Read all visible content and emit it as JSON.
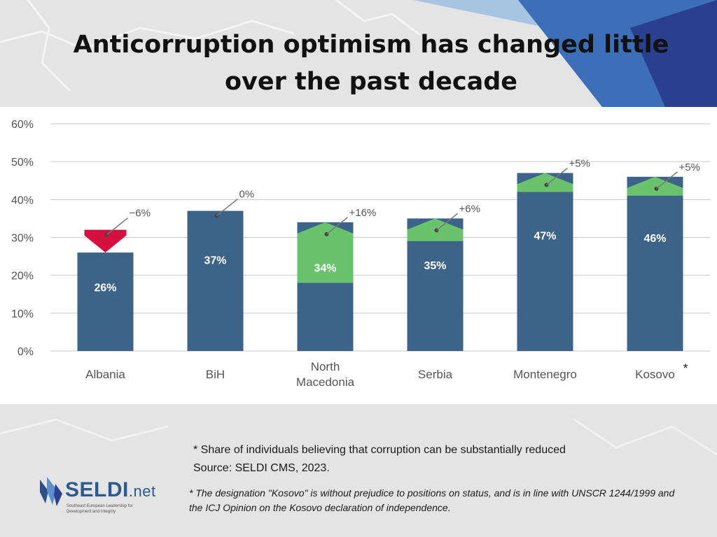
{
  "title_lines": [
    "Anticorruption optimism has changed little",
    "over the past decade"
  ],
  "chart_data": {
    "type": "bar",
    "categories": [
      "Albania",
      "BiH",
      "North Macedonia",
      "Serbia",
      "Montenegro",
      "Kosovo"
    ],
    "category_labels": [
      [
        "Albania"
      ],
      [
        "BiH"
      ],
      [
        "North",
        "Macedonia"
      ],
      [
        "Serbia"
      ],
      [
        "Montenegro"
      ],
      [
        "Kosovo"
      ]
    ],
    "category_markers": [
      "",
      "",
      "",
      "",
      "",
      "*"
    ],
    "values": [
      26,
      37,
      34,
      35,
      47,
      46
    ],
    "value_labels": [
      "26%",
      "37%",
      "34%",
      "35%",
      "47%",
      "46%"
    ],
    "changes": [
      -6,
      0,
      16,
      6,
      5,
      5
    ],
    "change_labels": [
      "−6%",
      "0%",
      "+16%",
      "+6%",
      "+5%",
      "+5%"
    ],
    "ylim": [
      0,
      60
    ],
    "yticks": [
      0,
      10,
      20,
      30,
      40,
      50,
      60
    ],
    "ytick_labels": [
      "0%",
      "10%",
      "20%",
      "30%",
      "40%",
      "50%",
      "60%"
    ],
    "grid": true,
    "colors": {
      "bar": "#3d6488",
      "increase": "#6ac36c",
      "decrease": "#d4103f",
      "grid": "#c8c8c8",
      "text": "#555555"
    }
  },
  "notes": {
    "definition": "* Share of individuals believing that corruption can be substantially reduced",
    "source": "Source: SELDI CMS, 2023."
  },
  "disclaimer": "* The designation \"Kosovo\" is without prejudice to positions on status, and is in line with UNSCR 1244/1999 and the ICJ Opinion on the Kosovo declaration of independence.",
  "logo": {
    "name": "SELDI",
    "suffix": ".net",
    "tagline": "Southeast European Leadership for Development and Integrity"
  },
  "accent_colors": {
    "navy": "#2a3f8f",
    "blue": "#3c6fb8",
    "light_blue": "#9cc0e3"
  }
}
